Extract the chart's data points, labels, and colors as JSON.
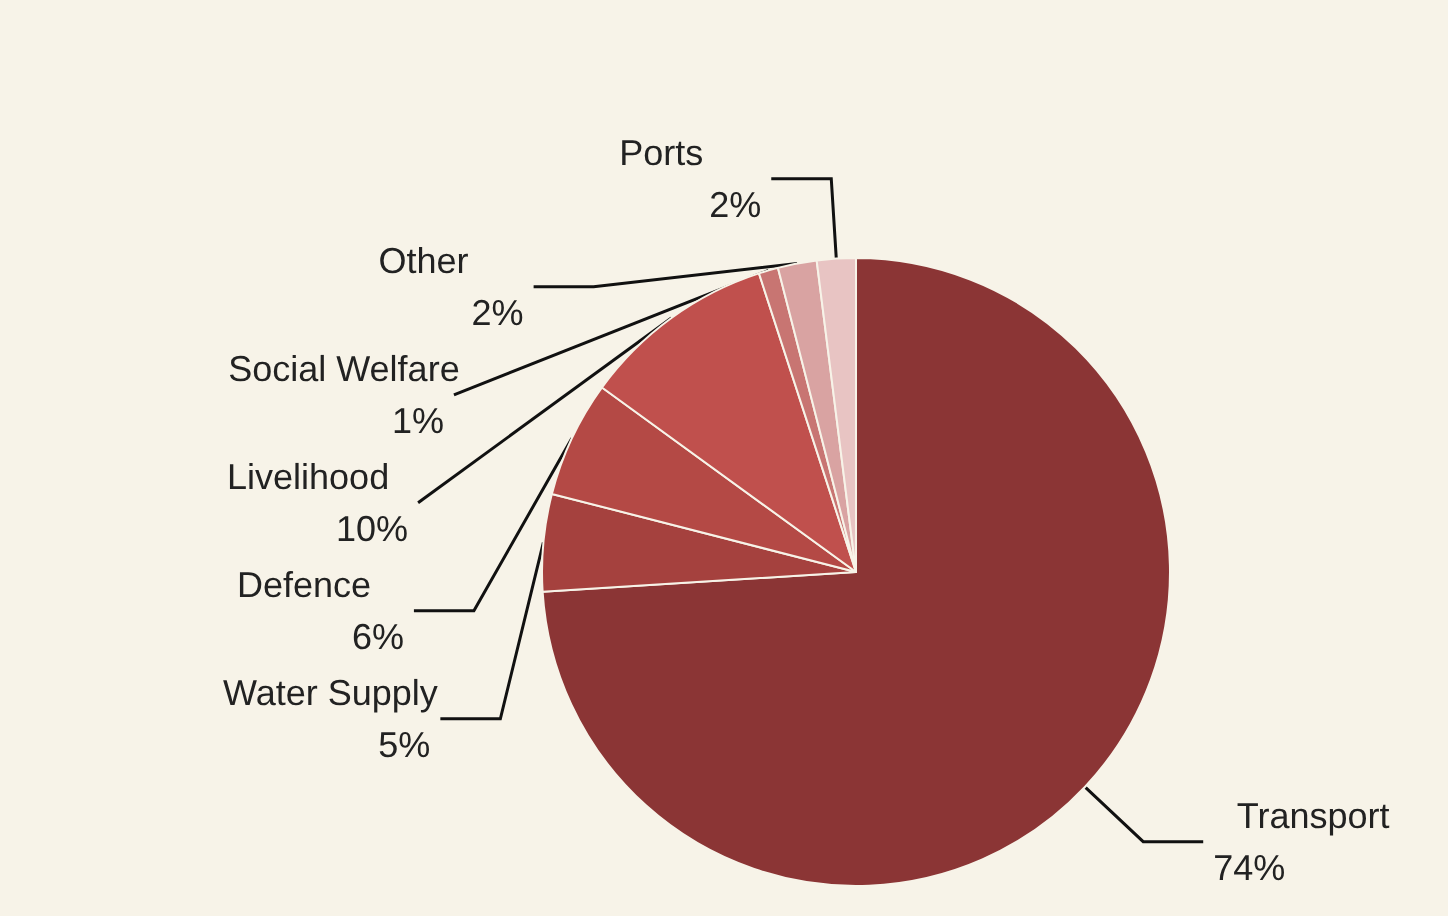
{
  "chart_data": {
    "type": "pie",
    "categories": [
      "Transport",
      "Water Supply",
      "Defence",
      "Livelihood",
      "Social Welfare",
      "Other",
      "Ports"
    ],
    "values": [
      74,
      5,
      6,
      10,
      1,
      2,
      2
    ],
    "value_labels": [
      "74%",
      "5%",
      "6%",
      "10%",
      "1%",
      "2%",
      "2%"
    ],
    "colors": [
      "#8b3535",
      "#a5413e",
      "#b44945",
      "#c0504d",
      "#c87572",
      "#d9a3a2",
      "#e8c4c3"
    ],
    "legend": false
  }
}
